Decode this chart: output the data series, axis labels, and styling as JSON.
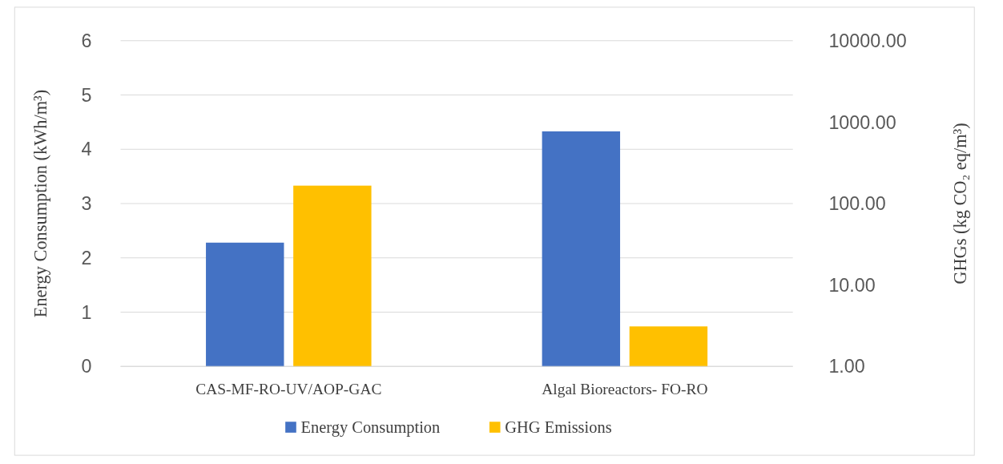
{
  "chart_data": {
    "type": "bar",
    "categories": [
      "CAS-MF-RO-UV/AOP-GAC",
      "Algal Bioreactors- FO-RO"
    ],
    "series": [
      {
        "name": "Energy Consumption",
        "color": "#4472c4",
        "values": [
          2.28,
          4.33
        ]
      },
      {
        "name": "GHG Emissions",
        "color": "#ffc000",
        "values": [
          166,
          3.1
        ],
        "axis": "y2"
      }
    ],
    "ylabel": "Energy Consumption (kWh/m³)",
    "y2label": "GHGs (kg CO₂ eq/m³)",
    "ylim": [
      0,
      6
    ],
    "yticks": [
      0,
      1,
      2,
      3,
      4,
      5,
      6
    ],
    "y2lim": [
      1,
      10000
    ],
    "y2ticks": [
      {
        "value": 1,
        "label": "1.00"
      },
      {
        "value": 10,
        "label": "10.00"
      },
      {
        "value": 100,
        "label": "100.00"
      },
      {
        "value": 1000,
        "label": "1000.00"
      },
      {
        "value": 10000,
        "label": "10000.00"
      }
    ],
    "log": "y2",
    "grid": "y",
    "legend": "bottom"
  }
}
